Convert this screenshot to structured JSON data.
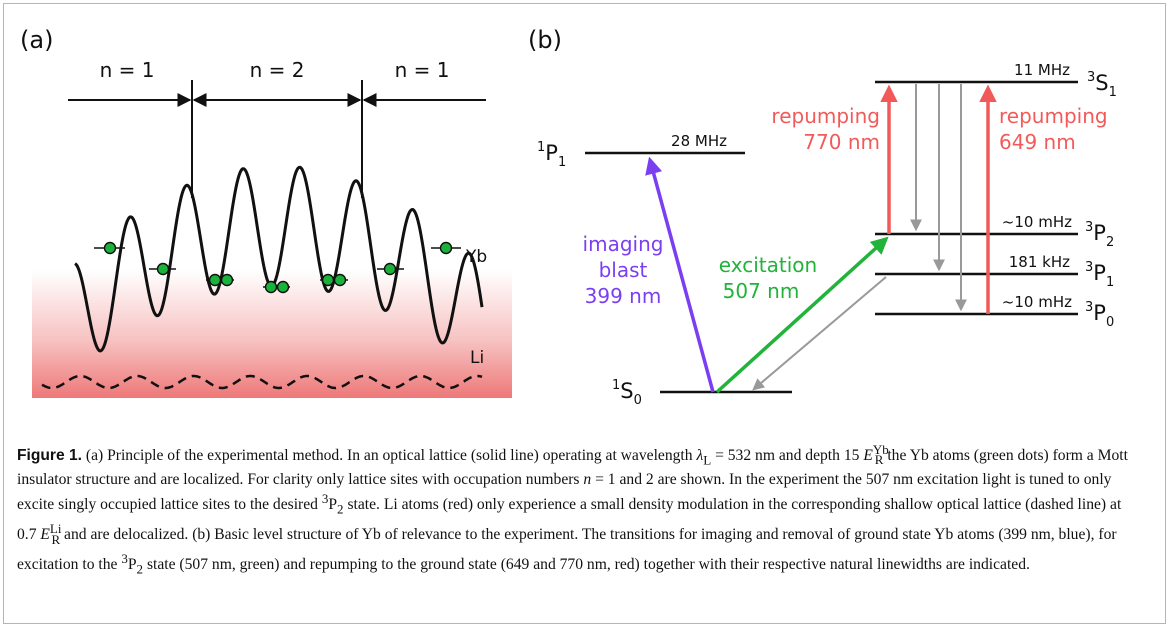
{
  "panel_a": {
    "label": "(a)",
    "sections": [
      "n = 1",
      "n = 2",
      "n = 1"
    ],
    "yb_label": "Yb",
    "li_label": "Li"
  },
  "panel_b": {
    "label": "(b)",
    "levels": {
      "p1_singlet": {
        "state": "P",
        "mult": "1",
        "sub": "1",
        "linewidth": "28 MHz"
      },
      "s1_triplet": {
        "state": "S",
        "mult": "3",
        "sub": "1",
        "linewidth": "11 MHz"
      },
      "p2_triplet": {
        "state": "P",
        "mult": "3",
        "sub": "2",
        "linewidth": "~10 mHz"
      },
      "p1_triplet": {
        "state": "P",
        "mult": "3",
        "sub": "1",
        "linewidth": "181 kHz"
      },
      "p0_triplet": {
        "state": "P",
        "mult": "3",
        "sub": "0",
        "linewidth": "~10 mHz"
      },
      "s0_ground": {
        "state": "S",
        "mult": "1",
        "sub": "0"
      }
    },
    "transitions": {
      "imaging": [
        "imaging",
        "blast",
        "399 nm"
      ],
      "excitation": [
        "excitation",
        "507 nm"
      ],
      "repump_770": [
        "repumping",
        "770 nm"
      ],
      "repump_649": [
        "repumping",
        "649 nm"
      ]
    },
    "colors": {
      "imaging": "#7b3ff2",
      "excitation": "#22b33a",
      "repump": "#f25a5a",
      "decay": "#999999",
      "atom": "#19b23b",
      "li_gradient": "#f08080"
    }
  },
  "caption": {
    "label": "Figure 1.",
    "s1": "(a) Principle of the experimental method. In an optical lattice (solid line) operating at wavelength ",
    "lambda": "λ",
    "lambda_sub": "L",
    "s2": " = 532 nm and depth 15 ",
    "E1": "E",
    "E1_sub": "R",
    "E1_sup": "Yb",
    "s3": " the Yb atoms (green dots) form a Mott insulator structure and are localized. For clarity only lattice sites with occupation numbers ",
    "n": "n",
    "s4": " = 1 and 2 are shown. In the experiment the 507 nm excitation light is tuned to only excite singly occupied lattice sites to the desired ",
    "p2_sup": "3",
    "p2": "P",
    "p2_sub": "2",
    "s5": " state. Li atoms (red) only experience a small density modulation in the corresponding shallow optical lattice (dashed line) at 0.7 ",
    "E2": "E",
    "E2_sub": "R",
    "E2_sup": "Li",
    "s6": " and are delocalized. (b) Basic level structure of Yb of relevance to the experiment. The transitions for imaging and removal of ground state Yb atoms (399 nm, blue), for excitation to the ",
    "p2b_sup": "3",
    "p2b": "P",
    "p2b_sub": "2",
    "s7": " state (507 nm, green) and repumping to the ground state (649 and 770 nm, red) together with their respective natural linewidths are indicated."
  }
}
